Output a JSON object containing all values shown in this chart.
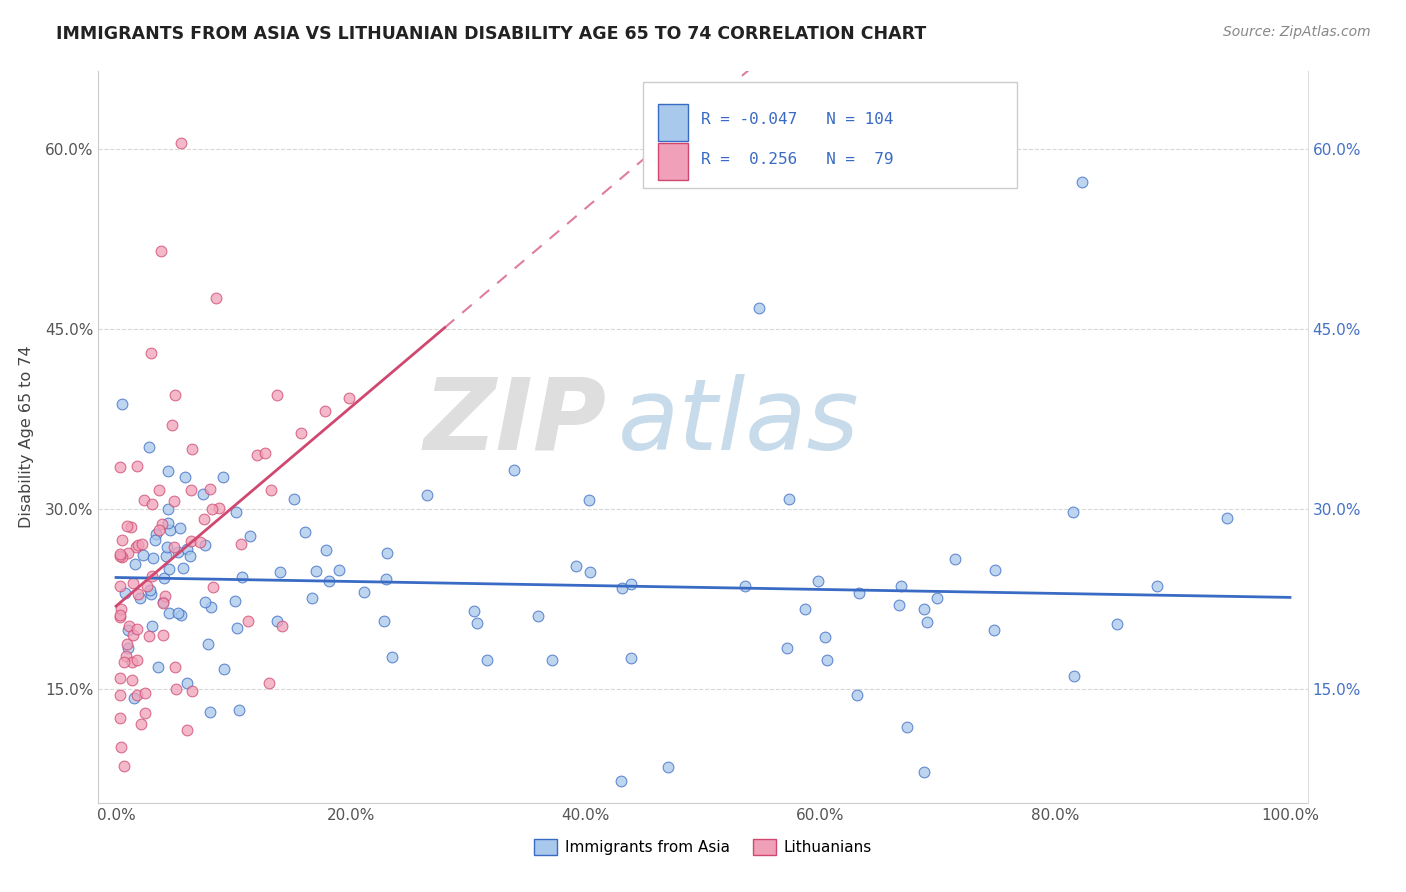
{
  "title": "IMMIGRANTS FROM ASIA VS LITHUANIAN DISABILITY AGE 65 TO 74 CORRELATION CHART",
  "source": "Source: ZipAtlas.com",
  "ylabel": "Disability Age 65 to 74",
  "legend_label_1": "Immigrants from Asia",
  "legend_label_2": "Lithuanians",
  "R1": -0.047,
  "N1": 104,
  "R2": 0.256,
  "N2": 79,
  "color1": "#A8C8EC",
  "color2": "#F0A0B8",
  "line1_color": "#3A6BC4",
  "line2_color": "#D04870",
  "watermark_zip": "ZIP",
  "watermark_atlas": "atlas",
  "xlim": [
    0.0,
    1.0
  ],
  "ylim": [
    0.055,
    0.665
  ],
  "xticks": [
    0.0,
    0.2,
    0.4,
    0.6,
    0.8,
    1.0
  ],
  "yticks": [
    0.15,
    0.3,
    0.45,
    0.6
  ],
  "xticklabels": [
    "0.0%",
    "20.0%",
    "40.0%",
    "60.0%",
    "80.0%",
    "100.0%"
  ],
  "yticklabels": [
    "15.0%",
    "30.0%",
    "45.0%",
    "60.0%"
  ],
  "tick_color_right": "#4472C4",
  "grid_color": "#D8D8D8"
}
